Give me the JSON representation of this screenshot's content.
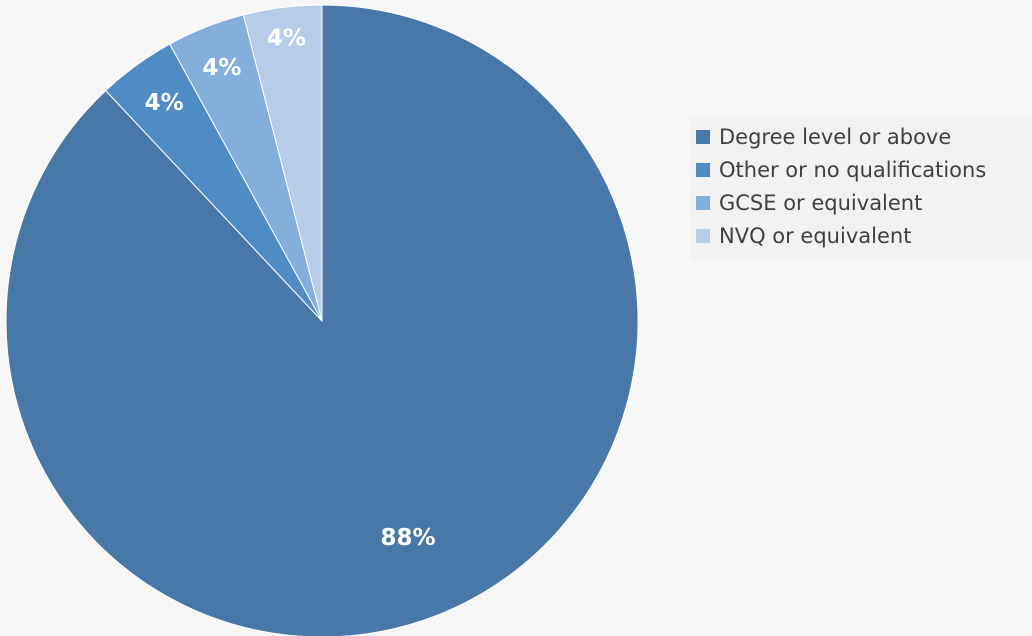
{
  "chart_data": {
    "type": "pie",
    "title": "",
    "legend_position": "right",
    "start_angle_deg": 0,
    "direction": "clockwise",
    "slices": [
      {
        "label": "Degree level or above",
        "value": 88,
        "display": "88%",
        "color": "#4878a8"
      },
      {
        "label": "Other or no qualifications",
        "value": 4,
        "display": "4%",
        "color": "#4f8cc6"
      },
      {
        "label": "GCSE or equivalent",
        "value": 4,
        "display": "4%",
        "color": "#84aedb"
      },
      {
        "label": "NVQ or equivalent",
        "value": 4,
        "display": "4%",
        "color": "#b6cce8"
      }
    ]
  }
}
